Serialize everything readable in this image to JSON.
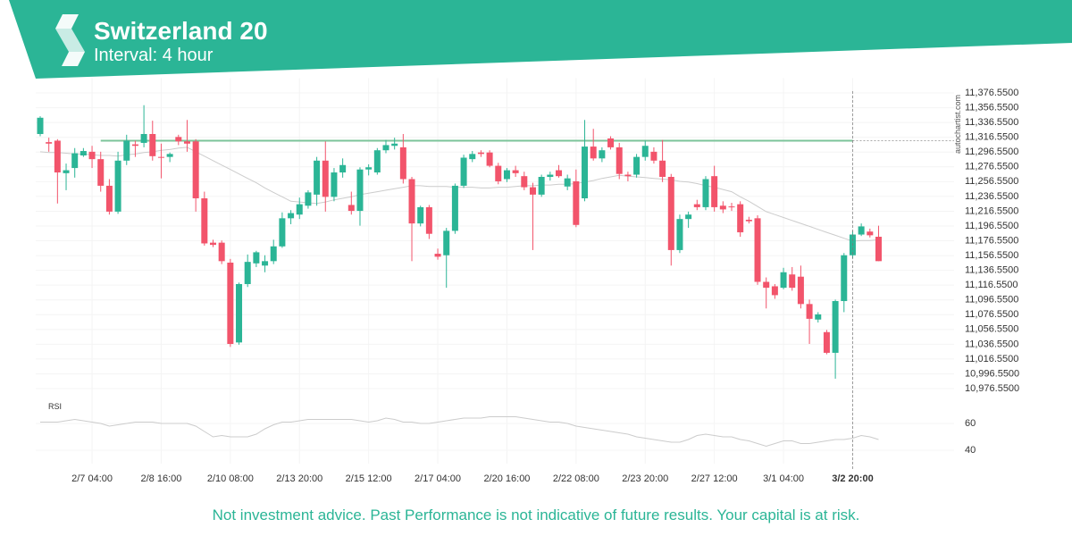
{
  "chart_data": {
    "type": "candlestick",
    "title": "Switzerland 20",
    "subtitle": "Interval: 4 hour",
    "watermark": "autochartist.com",
    "disclaimer": "Not investment advice. Past Performance is not indicative of future results. Your capital is at risk.",
    "categories": [
      null,
      null,
      null,
      null,
      null,
      null,
      "2/7 04:00",
      null,
      null,
      null,
      null,
      null,
      null,
      null,
      "2/8 16:00",
      null,
      null,
      null,
      null,
      null,
      null,
      null,
      "2/10 08:00",
      null,
      null,
      null,
      null,
      null,
      null,
      null,
      "2/13 20:00",
      null,
      null,
      null,
      null,
      null,
      null,
      null,
      "2/15 12:00",
      null,
      null,
      null,
      null,
      null,
      null,
      null,
      "2/17 04:00",
      null,
      null,
      null,
      null,
      null,
      null,
      null,
      "2/20 16:00",
      null,
      null,
      null,
      null,
      null,
      null,
      null,
      "2/22 08:00",
      null,
      null,
      null,
      null,
      null,
      null,
      null,
      "2/23 20:00",
      null,
      null,
      null,
      null,
      null,
      null,
      null,
      "2/27 12:00",
      null,
      null,
      null,
      null,
      null,
      null,
      null,
      "3/1 04:00",
      null,
      null,
      null,
      null,
      null,
      null,
      null,
      "3/2 20:00",
      null,
      null,
      null
    ],
    "marker_category": "3/2 20:00",
    "open": [
      11321,
      11310,
      11312,
      11268,
      11275,
      11292,
      11297,
      11287,
      11251,
      11216,
      11285,
      11307,
      11309,
      11321,
      11290,
      11290,
      11317,
      11311,
      11311,
      11234,
      11174,
      11174,
      11147,
      11039,
      11118,
      11146,
      11143,
      11149,
      11169,
      11207,
      11212,
      11224,
      11239,
      11285,
      11236,
      11269,
      11225,
      11217,
      11273,
      11269,
      11299,
      11305,
      11303,
      11260,
      11200,
      11222,
      11159,
      11157,
      11190,
      11251,
      11287,
      11296,
      11296,
      11278,
      11260,
      11272,
      11264,
      11249,
      11239,
      11263,
      11272,
      11250,
      11257,
      11234,
      11304,
      11288,
      11315,
      11303,
      11266,
      11266,
      11290,
      11297,
      11285,
      11263,
      11164,
      11206,
      11226,
      11222,
      11264,
      11224,
      11223,
      11226,
      11205,
      11207,
      11121,
      11115,
      11113,
      11131,
      11128,
      11091,
      11070,
      11053,
      11025,
      11095,
      11157,
      11185,
      11189,
      11182
    ],
    "high": [
      11345,
      11316,
      11314,
      11281,
      11302,
      11302,
      11305,
      11297,
      11260,
      11297,
      11320,
      11312,
      11360,
      11339,
      11308,
      11296,
      11320,
      11340,
      11314,
      11243,
      11178,
      11177,
      11152,
      11120,
      11158,
      11163,
      11157,
      11178,
      11215,
      11218,
      11235,
      11245,
      11290,
      11311,
      11275,
      11288,
      11243,
      11276,
      11280,
      11302,
      11313,
      11316,
      11321,
      11263,
      11224,
      11225,
      11166,
      11194,
      11254,
      11293,
      11298,
      11299,
      11299,
      11282,
      11275,
      11278,
      11270,
      11255,
      11266,
      11270,
      11279,
      11266,
      11273,
      11340,
      11328,
      11303,
      11318,
      11309,
      11270,
      11294,
      11312,
      11303,
      11313,
      11267,
      11212,
      11216,
      11232,
      11264,
      11278,
      11230,
      11228,
      11230,
      11209,
      11211,
      11127,
      11118,
      11140,
      11141,
      11143,
      11097,
      11080,
      11056,
      11097,
      11160,
      11190,
      11200,
      11193,
      11197
    ],
    "low": [
      11318,
      11297,
      11227,
      11245,
      11262,
      11290,
      11275,
      11243,
      11212,
      11213,
      11279,
      11290,
      11303,
      11285,
      11261,
      11283,
      11306,
      11297,
      11216,
      11170,
      11168,
      11145,
      11033,
      11036,
      11114,
      11141,
      11134,
      11145,
      11167,
      11199,
      11206,
      11220,
      11224,
      11216,
      11230,
      11262,
      11212,
      11197,
      11265,
      11266,
      11295,
      11300,
      11254,
      11149,
      11196,
      11179,
      11151,
      11113,
      11186,
      11248,
      11283,
      11290,
      11276,
      11253,
      11256,
      11263,
      11245,
      11164,
      11236,
      11258,
      11262,
      11245,
      11195,
      11230,
      11285,
      11283,
      11300,
      11260,
      11257,
      11262,
      11285,
      11281,
      11256,
      11143,
      11160,
      11194,
      11218,
      11218,
      11216,
      11214,
      11217,
      11182,
      11200,
      11117,
      11085,
      11098,
      11111,
      11109,
      11085,
      11037,
      11066,
      11023,
      10990,
      11080,
      11153,
      11183,
      11181,
      11149
    ],
    "close": [
      11343,
      11308,
      11269,
      11272,
      11295,
      11298,
      11287,
      11251,
      11216,
      11285,
      11312,
      11305,
      11321,
      11291,
      11289,
      11294,
      11311,
      11308,
      11234,
      11173,
      11171,
      11149,
      11037,
      11118,
      11148,
      11161,
      11149,
      11169,
      11207,
      11214,
      11226,
      11242,
      11285,
      11236,
      11269,
      11279,
      11217,
      11273,
      11276,
      11299,
      11306,
      11308,
      11260,
      11200,
      11222,
      11186,
      11155,
      11190,
      11251,
      11289,
      11294,
      11294,
      11278,
      11257,
      11272,
      11268,
      11249,
      11239,
      11263,
      11266,
      11264,
      11261,
      11198,
      11304,
      11288,
      11299,
      11303,
      11267,
      11264,
      11290,
      11305,
      11285,
      11263,
      11164,
      11206,
      11212,
      11222,
      11260,
      11222,
      11219,
      11222,
      11188,
      11203,
      11121,
      11113,
      11103,
      11134,
      11113,
      11091,
      11071,
      11077,
      11025,
      11095,
      11157,
      11185,
      11196,
      11184,
      11149
    ],
    "up_color": "#2bb596",
    "down_color": "#f2546b",
    "moving_average": [
      11297,
      11296,
      11296,
      11295,
      11294,
      11294,
      11293,
      11292,
      11292,
      11291,
      11293,
      11294,
      11296,
      11297,
      11299,
      11300,
      11302,
      11303,
      11297,
      11291,
      11285,
      11279,
      11273,
      11267,
      11261,
      11255,
      11248,
      11242,
      11236,
      11230,
      11229,
      11228,
      11227,
      11229,
      11232,
      11234,
      11236,
      11239,
      11241,
      11243,
      11245,
      11247,
      11249,
      11251,
      11251,
      11250,
      11250,
      11250,
      11249,
      11249,
      11249,
      11248,
      11248,
      11249,
      11249,
      11250,
      11251,
      11251,
      11252,
      11252,
      11253,
      11253,
      11254,
      11256,
      11258,
      11261,
      11263,
      11265,
      11264,
      11263,
      11262,
      11261,
      11260,
      11259,
      11257,
      11256,
      11254,
      11251,
      11249,
      11246,
      11243,
      11236,
      11230,
      11223,
      11216,
      11212,
      11208,
      11204,
      11200,
      11196,
      11192,
      11188,
      11184,
      11180,
      11176,
      11177,
      11177,
      11178
    ],
    "moving_average_color": "#cccccc",
    "resistance_level": 11312,
    "resistance_color": "#7cc49a",
    "ylim": [
      10966.55,
      11396.55
    ],
    "yticks": [
      {
        "value": 11376.55,
        "label": "11,376.5500"
      },
      {
        "value": 11356.55,
        "label": "11,356.5500"
      },
      {
        "value": 11336.55,
        "label": "11,336.5500"
      },
      {
        "value": 11316.55,
        "label": "11,316.5500"
      },
      {
        "value": 11296.55,
        "label": "11,296.5500"
      },
      {
        "value": 11276.55,
        "label": "11,276.5500"
      },
      {
        "value": 11256.55,
        "label": "11,256.5500"
      },
      {
        "value": 11236.55,
        "label": "11,236.5500"
      },
      {
        "value": 11216.55,
        "label": "11,216.5500"
      },
      {
        "value": 11196.55,
        "label": "11,196.5500"
      },
      {
        "value": 11176.55,
        "label": "11,176.5500"
      },
      {
        "value": 11156.55,
        "label": "11,156.5500"
      },
      {
        "value": 11136.55,
        "label": "11,136.5500"
      },
      {
        "value": 11116.55,
        "label": "11,116.5500"
      },
      {
        "value": 11096.55,
        "label": "11,096.5500"
      },
      {
        "value": 11076.55,
        "label": "11,076.5500"
      },
      {
        "value": 11056.55,
        "label": "11,056.5500"
      },
      {
        "value": 11036.55,
        "label": "11,036.5500"
      },
      {
        "value": 11016.55,
        "label": "11,016.5500"
      },
      {
        "value": 10996.55,
        "label": "10,996.5500"
      },
      {
        "value": 10976.55,
        "label": "10,976.5500"
      }
    ],
    "grid": true,
    "rsi": {
      "label": "RSI",
      "values": [
        61,
        61,
        61,
        62,
        63,
        62,
        61,
        60,
        58,
        59,
        60,
        61,
        61,
        61,
        60,
        60,
        60,
        60,
        58,
        54,
        50,
        51,
        50,
        50,
        50,
        52,
        56,
        59,
        61,
        61,
        62,
        63,
        63,
        63,
        63,
        63,
        63,
        62,
        61,
        62,
        64,
        63,
        61,
        61,
        60,
        60,
        61,
        62,
        63,
        64,
        64,
        64,
        65,
        65,
        65,
        65,
        64,
        63,
        62,
        61,
        61,
        60,
        58,
        57,
        56,
        55,
        54,
        53,
        52,
        50,
        49,
        48,
        47,
        46,
        46,
        48,
        51,
        52,
        51,
        50,
        50,
        48,
        47,
        45,
        43,
        45,
        47,
        47,
        45,
        45,
        46,
        47,
        48,
        48,
        49,
        51,
        50,
        48
      ],
      "color": "#cccccc",
      "ylim": [
        30,
        72
      ],
      "yticks": [
        40,
        60
      ]
    }
  }
}
